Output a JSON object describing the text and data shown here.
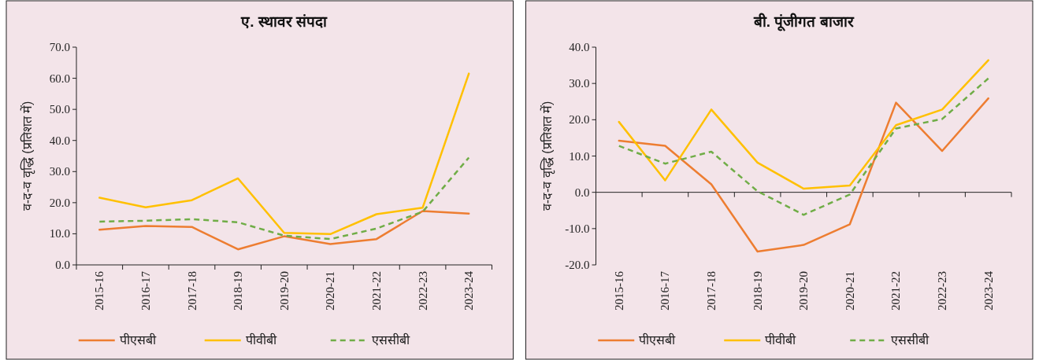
{
  "chart_data": [
    {
      "type": "line",
      "title": "ए. स्थावर संपदा",
      "ylabel": "व-द-व वृद्धि (प्रतिशत में)",
      "categories": [
        "2015-16",
        "2016-17",
        "2017-18",
        "2018-19",
        "2019-20",
        "2020-21",
        "2021-22",
        "2022-23",
        "2023-24"
      ],
      "series": [
        {
          "name": "पीएसबी",
          "color": "#ed7d31",
          "line_style": "solid",
          "values": [
            11.3,
            12.5,
            12.2,
            5.0,
            9.2,
            6.7,
            8.3,
            17.3,
            16.5
          ]
        },
        {
          "name": "पीवीबी",
          "color": "#ffc000",
          "line_style": "solid",
          "values": [
            21.6,
            18.5,
            20.8,
            27.8,
            10.3,
            9.9,
            16.3,
            18.4,
            61.5
          ]
        },
        {
          "name": "एससीबी",
          "color": "#70ad47",
          "line_style": "dashed",
          "values": [
            13.9,
            14.2,
            14.7,
            13.7,
            9.4,
            8.3,
            11.7,
            17.1,
            34.5
          ]
        }
      ],
      "ylim": [
        0,
        70
      ],
      "yticks": [
        {
          "value": 0,
          "label": "0.0"
        },
        {
          "value": 10,
          "label": "10.0"
        },
        {
          "value": 20,
          "label": "20.0"
        },
        {
          "value": 30,
          "label": "30.0"
        },
        {
          "value": 40,
          "label": "40.0"
        },
        {
          "value": 50,
          "label": "50.0"
        },
        {
          "value": 60,
          "label": "60.0"
        },
        {
          "value": 70,
          "label": "70.0"
        }
      ],
      "legend": "bottom"
    },
    {
      "type": "line",
      "title": "बी. पूंजीगत बाजार",
      "ylabel": "व-द-व वृद्धि (प्रतिशत में)",
      "categories": [
        "2015-16",
        "2016-17",
        "2017-18",
        "2018-19",
        "2019-20",
        "2020-21",
        "2021-22",
        "2022-23",
        "2023-24"
      ],
      "series": [
        {
          "name": "पीएसबी",
          "color": "#ed7d31",
          "line_style": "solid",
          "values": [
            14.2,
            12.8,
            2.2,
            -16.3,
            -14.5,
            -8.8,
            24.7,
            11.4,
            25.9
          ]
        },
        {
          "name": "पीवीबी",
          "color": "#ffc000",
          "line_style": "solid",
          "values": [
            19.4,
            3.3,
            22.8,
            8.2,
            1.0,
            1.9,
            18.5,
            22.8,
            36.4
          ]
        },
        {
          "name": "एससीबी",
          "color": "#70ad47",
          "line_style": "dashed",
          "values": [
            12.8,
            7.9,
            11.2,
            0.3,
            -6.2,
            -0.6,
            17.6,
            20.2,
            31.4
          ]
        }
      ],
      "ylim": [
        -20,
        40
      ],
      "yticks": [
        {
          "value": -20,
          "label": "-20.0"
        },
        {
          "value": -10,
          "label": "-10.0"
        },
        {
          "value": 0,
          "label": "0.0"
        },
        {
          "value": 10,
          "label": "10.0"
        },
        {
          "value": 20,
          "label": "20.0"
        },
        {
          "value": 30,
          "label": "30.0"
        },
        {
          "value": 40,
          "label": "40.0"
        }
      ],
      "legend": "bottom"
    }
  ]
}
